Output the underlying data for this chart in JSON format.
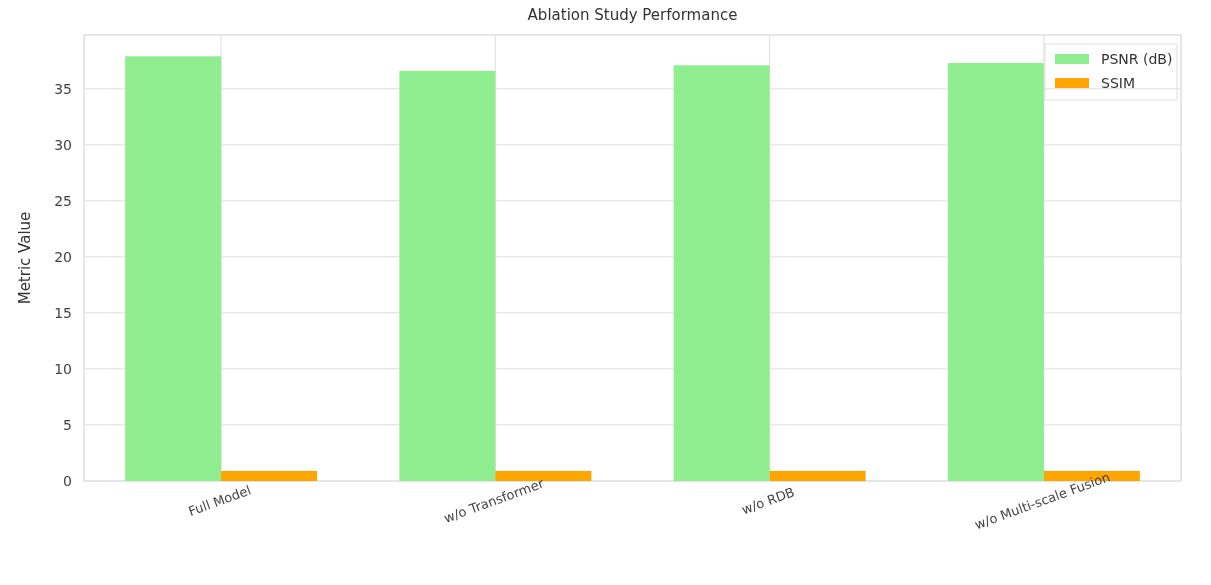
{
  "chart_data": {
    "type": "bar",
    "title": "Ablation Study Performance",
    "ylabel": "Metric Value",
    "categories": [
      "Full Model",
      "w/o Transformer",
      "w/o RDB",
      "w/o Multi-scale Fusion"
    ],
    "series": [
      {
        "name": "PSNR (dB)",
        "color": "#90ee90",
        "values": [
          37.9,
          36.6,
          37.1,
          37.3
        ]
      },
      {
        "name": "SSIM",
        "color": "#ffa500",
        "values": [
          0.9,
          0.9,
          0.9,
          0.9
        ]
      }
    ],
    "ylim": [
      0,
      39.8
    ],
    "yticks": [
      0,
      5,
      10,
      15,
      20,
      25,
      30,
      35
    ],
    "grid": true,
    "legend": "top right"
  }
}
